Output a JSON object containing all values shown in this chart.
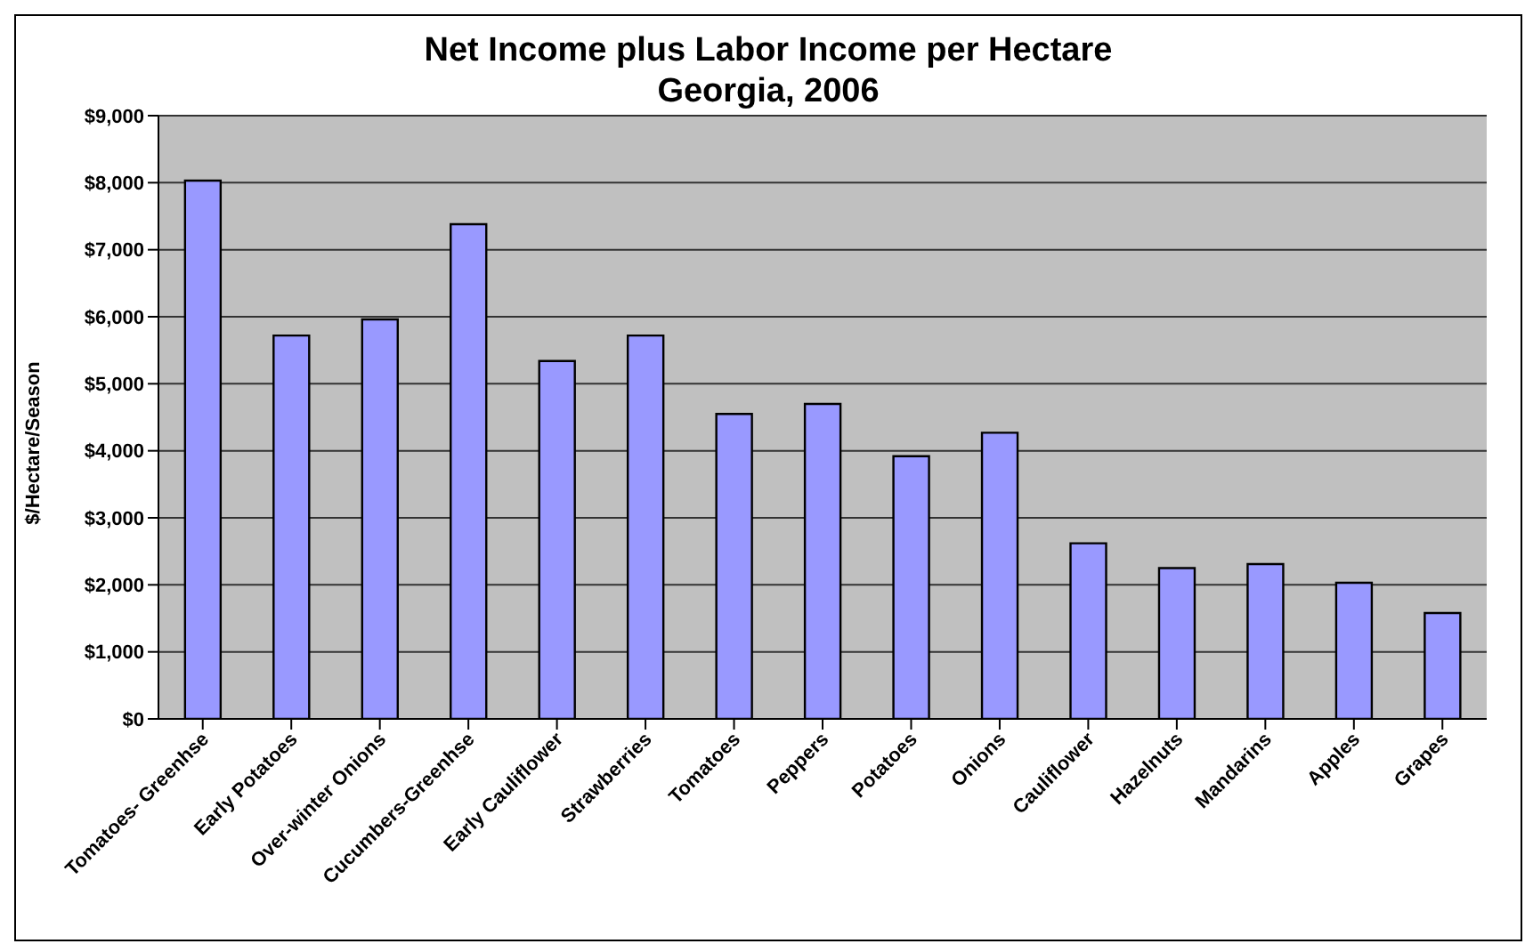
{
  "chart_data": {
    "type": "bar",
    "title": "Net Income plus Labor Income per Hectare\nGeorgia, 2006",
    "ylabel": "$/Hectare/Season",
    "categories": [
      "Tomatoes- Greenhse",
      "Early Potatoes",
      "Over-winter Onions",
      "Cucumbers-Greenhse",
      "Early Cauliflower",
      "Strawberries",
      "Tomatoes",
      "Peppers",
      "Potatoes",
      "Onions",
      "Cauliflower",
      "Hazelnuts",
      "Mandarins",
      "Apples",
      "Grapes"
    ],
    "values": [
      8030,
      5720,
      5960,
      7380,
      5340,
      5720,
      4550,
      4700,
      3920,
      4270,
      2620,
      2250,
      2310,
      2030,
      1580
    ],
    "color": "#9999ff",
    "ylim": [
      0,
      9000
    ],
    "yticks": [
      {
        "value": 0,
        "label": "$0"
      },
      {
        "value": 1000,
        "label": "$1,000"
      },
      {
        "value": 2000,
        "label": "$2,000"
      },
      {
        "value": 3000,
        "label": "$3,000"
      },
      {
        "value": 4000,
        "label": "$4,000"
      },
      {
        "value": 5000,
        "label": "$5,000"
      },
      {
        "value": 6000,
        "label": "$6,000"
      },
      {
        "value": 7000,
        "label": "$7,000"
      },
      {
        "value": 8000,
        "label": "$8,000"
      },
      {
        "value": 9000,
        "label": "$9,000"
      }
    ],
    "grid": "y",
    "legend": false
  }
}
